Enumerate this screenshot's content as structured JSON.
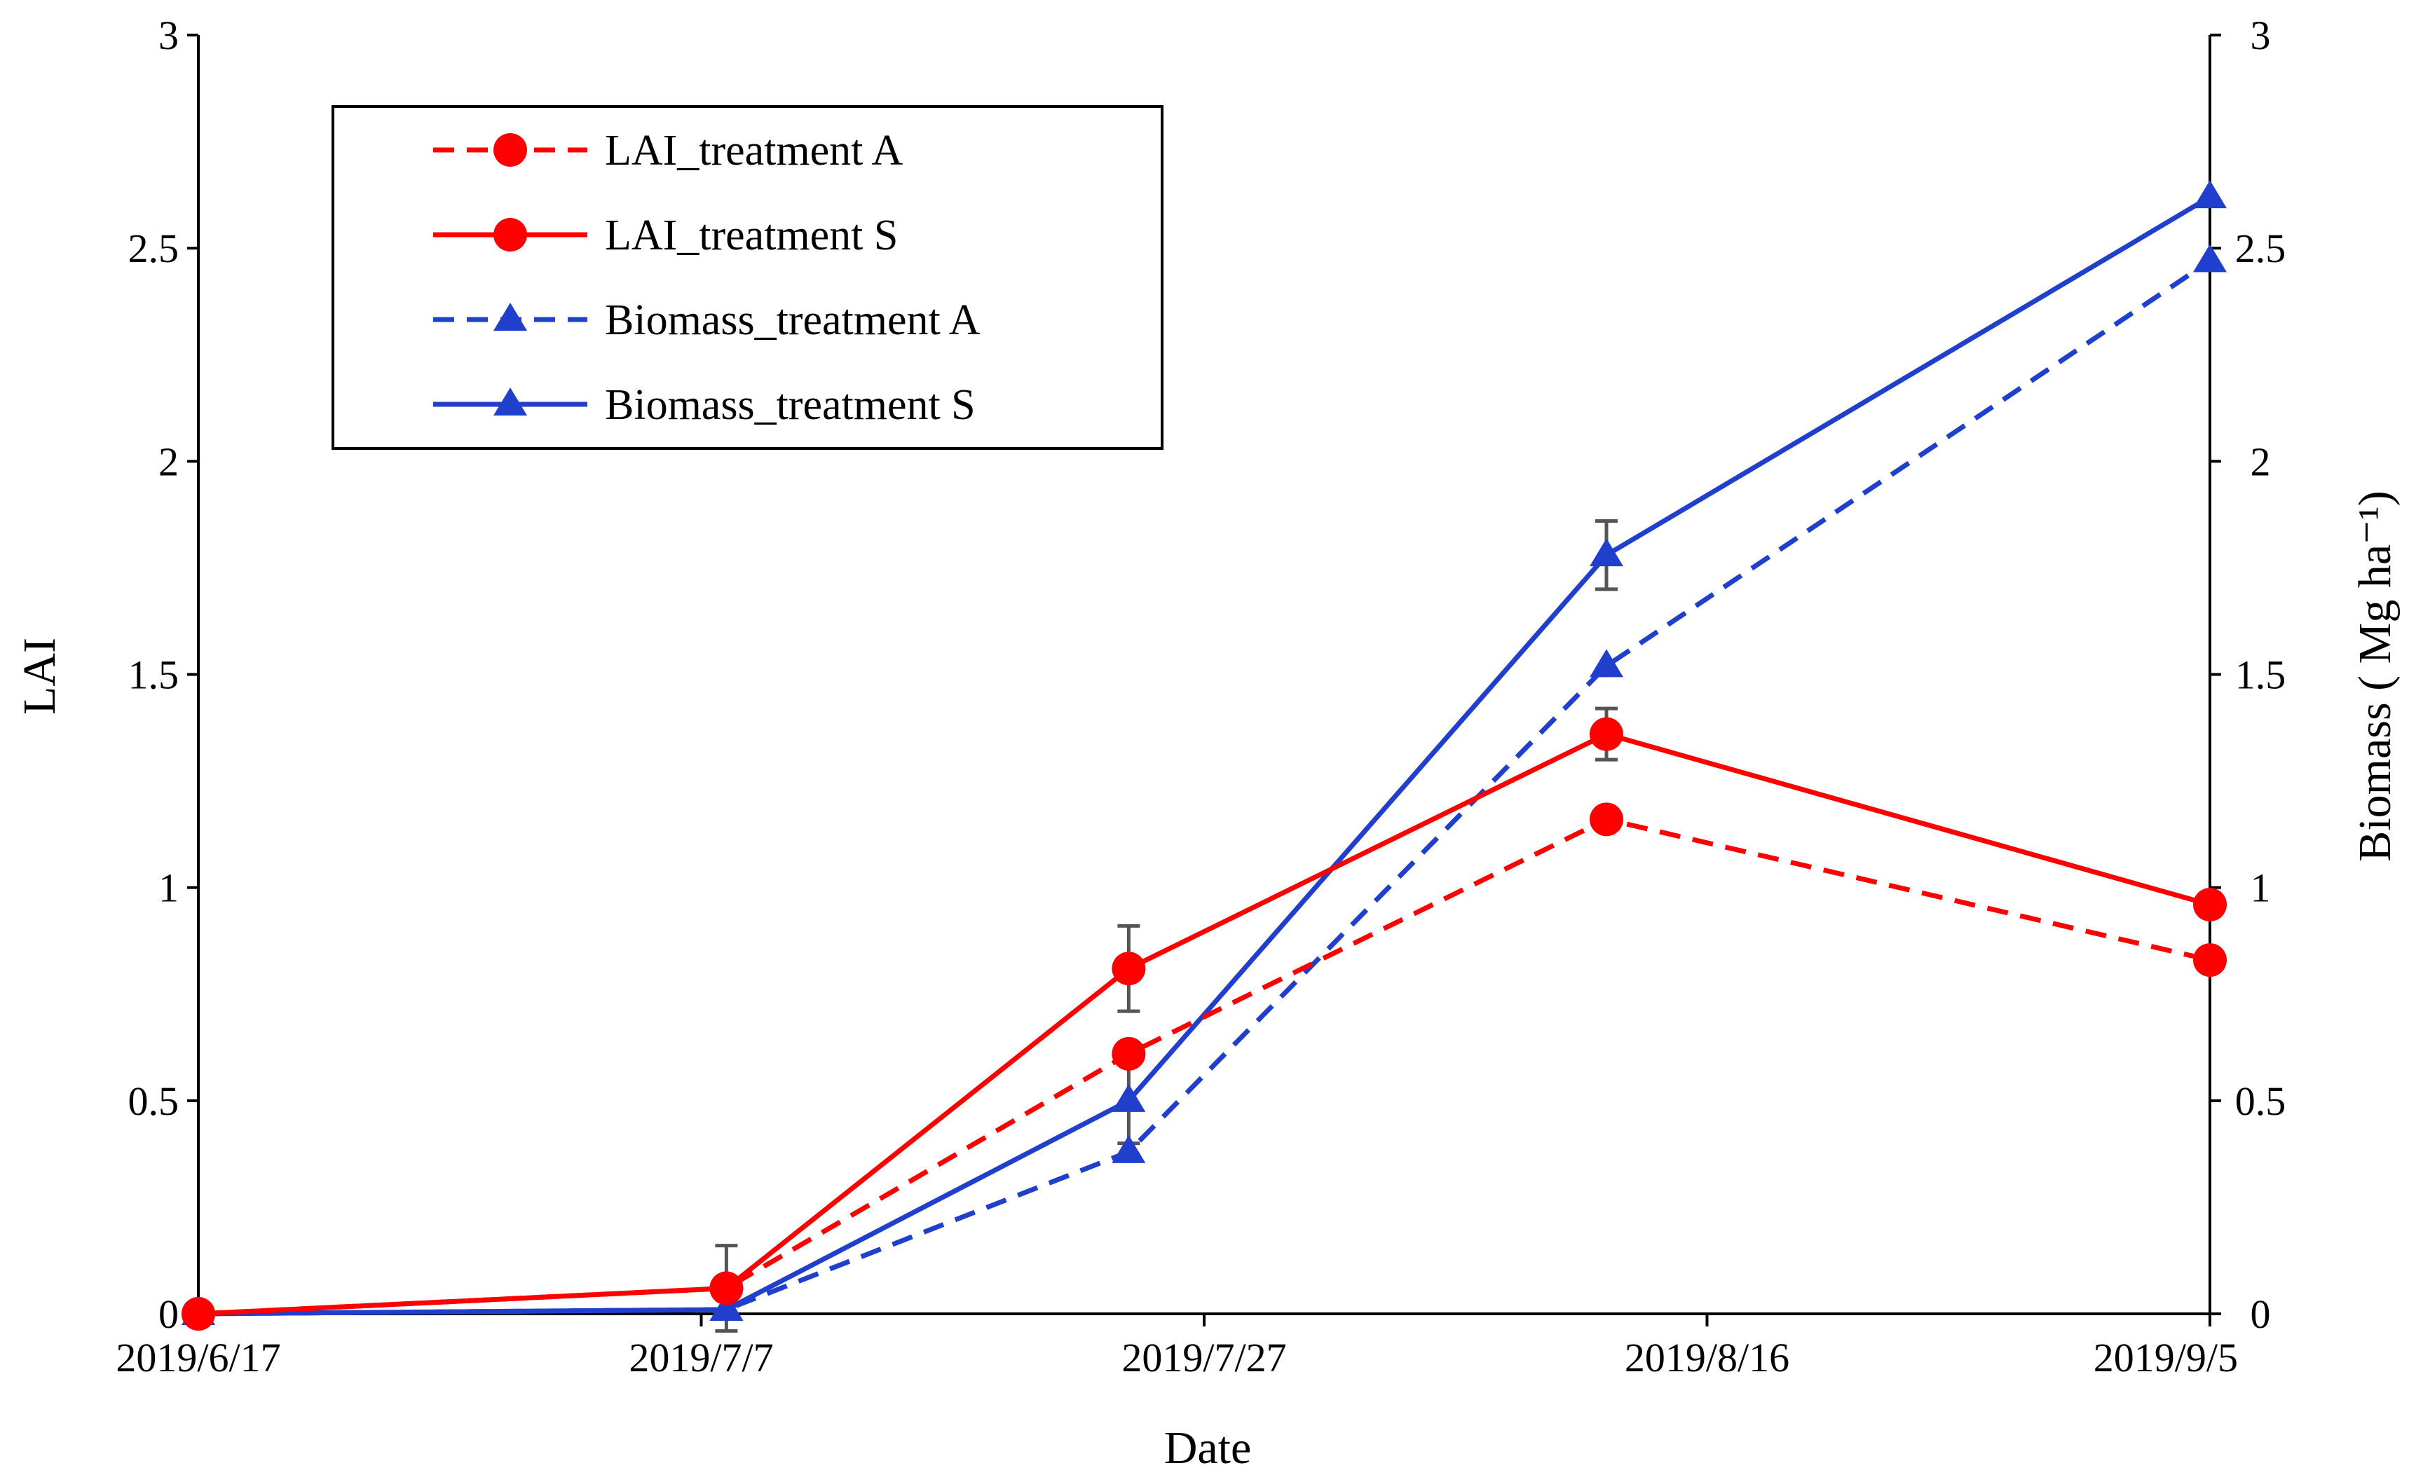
{
  "chart_data": {
    "type": "line",
    "title": "",
    "xlabel": "Date",
    "ylabel_left": "LAI",
    "ylabel_right": "Biomass ( Mg ha⁻¹)",
    "x_tick_labels": [
      "2019/6/17",
      "2019/7/7",
      "2019/7/27",
      "2019/8/16",
      "2019/9/5"
    ],
    "x_tick_days": [
      0,
      20,
      40,
      60,
      80
    ],
    "xlim_days": [
      0,
      80
    ],
    "y_left_lim": [
      0,
      3
    ],
    "y_right_lim": [
      0,
      3
    ],
    "y_left_ticks": [
      "0",
      "0.5",
      "1",
      "1.5",
      "2",
      "2.5",
      "3"
    ],
    "y_right_ticks": [
      "0",
      "0.5",
      "1",
      "1.5",
      "2",
      "2.5",
      "3"
    ],
    "sample_dates": [
      "2019/6/17",
      "2019/7/8",
      "2019/7/24",
      "2019/8/12",
      "2019/9/5"
    ],
    "sample_days": [
      0,
      21,
      37,
      56,
      80
    ],
    "legend_position": "top-left",
    "series": [
      {
        "name": "LAI_treatment A",
        "axis": "left",
        "color": "#ff0000",
        "dash": "dashed",
        "marker": "circle",
        "values": [
          0.0,
          0.06,
          0.61,
          1.16,
          0.83
        ],
        "errors": [
          0,
          0,
          0,
          0,
          0
        ]
      },
      {
        "name": "LAI_treatment S",
        "axis": "left",
        "color": "#ff0000",
        "dash": "solid",
        "marker": "circle",
        "values": [
          0.0,
          0.06,
          0.81,
          1.36,
          0.96
        ],
        "errors": [
          0,
          0.1,
          0.1,
          0.06,
          0
        ]
      },
      {
        "name": "Biomass_treatment A",
        "axis": "right",
        "color": "#1f3fcc",
        "dash": "dashed",
        "marker": "triangle",
        "values": [
          0.0,
          0.01,
          0.38,
          1.52,
          2.47
        ],
        "errors": [
          0,
          0,
          0,
          0,
          0
        ]
      },
      {
        "name": "Biomass_treatment S",
        "axis": "right",
        "color": "#1f3fcc",
        "dash": "solid",
        "marker": "triangle",
        "values": [
          0.0,
          0.01,
          0.5,
          1.78,
          2.62
        ],
        "errors": [
          0,
          0,
          0.1,
          0.08,
          0
        ]
      }
    ]
  }
}
